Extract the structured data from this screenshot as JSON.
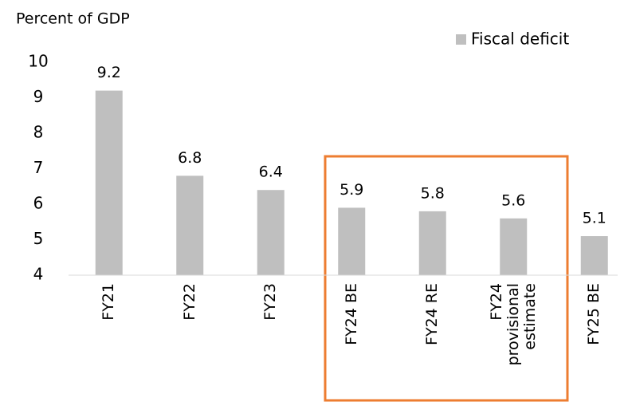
{
  "chart_data": {
    "type": "bar",
    "y_label": "Percent of GDP",
    "categories": [
      "FY21",
      "FY22",
      "FY23",
      "FY24 BE",
      "FY24 RE",
      "FY24 provisional estimate",
      "FY25 BE"
    ],
    "series": [
      {
        "name": "Fiscal deficit",
        "color": "#bfbfbf",
        "values": [
          9.2,
          6.8,
          6.4,
          5.9,
          5.8,
          5.6,
          5.1
        ]
      }
    ],
    "ylim": [
      4,
      10
    ],
    "yticks": [
      4,
      5,
      6,
      7,
      8,
      9,
      10
    ],
    "grid": false,
    "legend": "top-right"
  }
}
